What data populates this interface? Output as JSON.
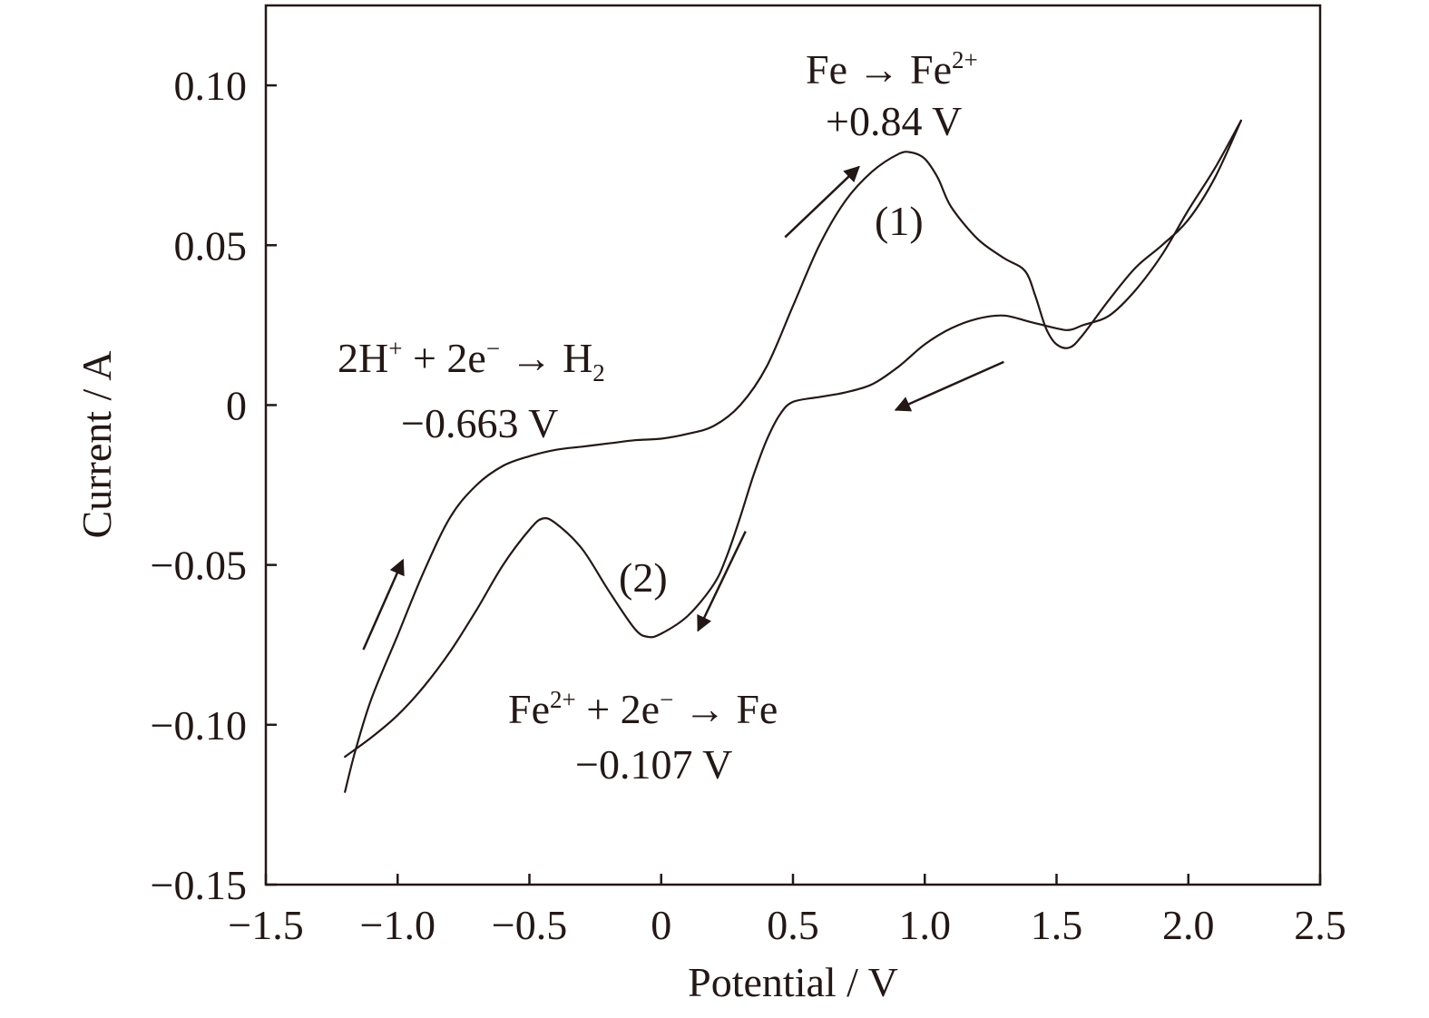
{
  "chart_data": {
    "type": "line",
    "xlabel": "Potential / V",
    "ylabel": "Current / A",
    "xlim": [
      -1.5,
      2.5
    ],
    "ylim": [
      -0.15,
      0.125
    ],
    "x_ticks": [
      -1.5,
      -1.0,
      -0.5,
      0,
      0.5,
      1.0,
      1.5,
      2.0,
      2.5
    ],
    "x_tick_labels": [
      "−1.5",
      "−1.0",
      "−0.5",
      "0",
      "0.5",
      "1.0",
      "1.5",
      "2.0",
      "2.5"
    ],
    "y_ticks": [
      0.1,
      0.05,
      0,
      -0.05,
      -0.1,
      -0.15
    ],
    "y_tick_labels": [
      "0.10",
      "0.05",
      "0",
      "−0.05",
      "−0.10",
      "−0.15"
    ],
    "grid": false,
    "line_color": "#231815",
    "series": [
      {
        "points": [
          [
            -1.2,
            -0.121
          ],
          [
            -1.16,
            -0.108
          ],
          [
            -1.1,
            -0.092
          ],
          [
            -1.0,
            -0.072
          ],
          [
            -0.9,
            -0.052
          ],
          [
            -0.8,
            -0.035
          ],
          [
            -0.7,
            -0.025
          ],
          [
            -0.6,
            -0.019
          ],
          [
            -0.5,
            -0.016
          ],
          [
            -0.4,
            -0.014
          ],
          [
            -0.3,
            -0.013
          ],
          [
            -0.2,
            -0.012
          ],
          [
            -0.1,
            -0.011
          ],
          [
            0.0,
            -0.0105
          ],
          [
            0.1,
            -0.009
          ],
          [
            0.2,
            -0.0065
          ],
          [
            0.3,
            0.0
          ],
          [
            0.4,
            0.012
          ],
          [
            0.5,
            0.031
          ],
          [
            0.6,
            0.05
          ],
          [
            0.7,
            0.064
          ],
          [
            0.8,
            0.073
          ],
          [
            0.9,
            0.0785
          ],
          [
            0.95,
            0.079
          ],
          [
            1.0,
            0.077
          ],
          [
            1.05,
            0.071
          ],
          [
            1.1,
            0.062
          ],
          [
            1.2,
            0.052
          ],
          [
            1.3,
            0.046
          ],
          [
            1.38,
            0.042
          ],
          [
            1.42,
            0.034
          ],
          [
            1.46,
            0.024
          ],
          [
            1.5,
            0.019
          ],
          [
            1.55,
            0.018
          ],
          [
            1.6,
            0.022
          ],
          [
            1.7,
            0.033
          ],
          [
            1.8,
            0.043
          ],
          [
            1.9,
            0.05
          ],
          [
            2.0,
            0.058
          ],
          [
            2.1,
            0.071
          ],
          [
            2.2,
            0.089
          ]
        ]
      },
      {
        "points": [
          [
            2.2,
            0.089
          ],
          [
            2.1,
            0.074
          ],
          [
            2.0,
            0.061
          ],
          [
            1.9,
            0.047
          ],
          [
            1.8,
            0.036
          ],
          [
            1.7,
            0.028
          ],
          [
            1.6,
            0.025
          ],
          [
            1.55,
            0.0235
          ],
          [
            1.5,
            0.024
          ],
          [
            1.4,
            0.026
          ],
          [
            1.3,
            0.028
          ],
          [
            1.2,
            0.027
          ],
          [
            1.1,
            0.024
          ],
          [
            1.0,
            0.019
          ],
          [
            0.9,
            0.012
          ],
          [
            0.8,
            0.0065
          ],
          [
            0.7,
            0.004
          ],
          [
            0.6,
            0.0025
          ],
          [
            0.5,
            0.001
          ],
          [
            0.45,
            -0.003
          ],
          [
            0.4,
            -0.011
          ],
          [
            0.35,
            -0.022
          ],
          [
            0.3,
            -0.035
          ],
          [
            0.25,
            -0.047
          ],
          [
            0.2,
            -0.056
          ],
          [
            0.1,
            -0.066
          ],
          [
            0.0,
            -0.0715
          ],
          [
            -0.05,
            -0.0725
          ],
          [
            -0.1,
            -0.07
          ],
          [
            -0.2,
            -0.058
          ],
          [
            -0.3,
            -0.045
          ],
          [
            -0.4,
            -0.037
          ],
          [
            -0.45,
            -0.0355
          ],
          [
            -0.5,
            -0.039
          ],
          [
            -0.6,
            -0.05
          ],
          [
            -0.7,
            -0.064
          ],
          [
            -0.8,
            -0.077
          ],
          [
            -0.9,
            -0.088
          ],
          [
            -1.0,
            -0.097
          ],
          [
            -1.1,
            -0.104
          ],
          [
            -1.2,
            -0.11
          ]
        ]
      }
    ],
    "arrows": [
      {
        "from": [
          -1.13,
          -0.0765
        ],
        "to": [
          -0.98,
          -0.0485
        ]
      },
      {
        "from": [
          0.47,
          0.0525
        ],
        "to": [
          0.75,
          0.0745
        ]
      },
      {
        "from": [
          1.3,
          0.0135
        ],
        "to": [
          0.89,
          -0.0015
        ]
      },
      {
        "from": [
          0.32,
          -0.0395
        ],
        "to": [
          0.14,
          -0.0705
        ]
      }
    ],
    "annotations": {
      "peak1_reaction": {
        "base1": "Fe → Fe",
        "sup1": "2+"
      },
      "peak1_potential": "+0.84 V",
      "peak1_label": "(1)",
      "h2_reaction": {
        "base1": "2H",
        "sup1": "+",
        "base2": " + 2e",
        "sup2": "−",
        "base3": " → H",
        "sub3": "2"
      },
      "h2_potential": "−0.663 V",
      "peak2_label": "(2)",
      "peak2_reaction": {
        "base1": "Fe",
        "sup1": "2+",
        "base2": " + 2e",
        "sup2": "−",
        "base3": " → Fe"
      },
      "peak2_potential": "−0.107 V"
    }
  }
}
